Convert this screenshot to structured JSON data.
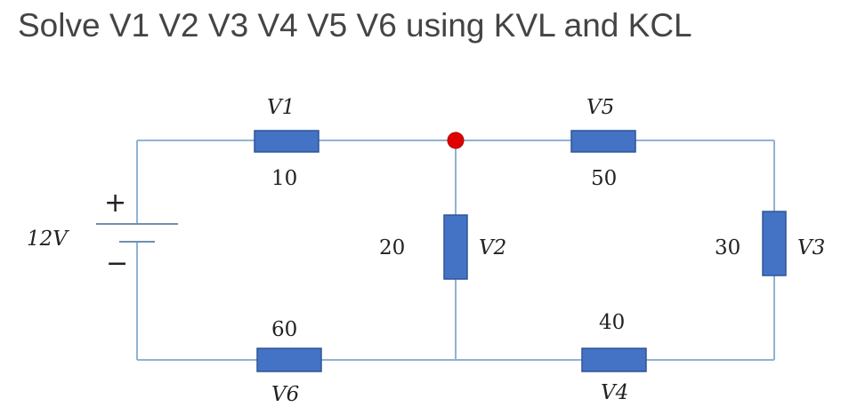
{
  "title": "Solve V1 V2 V3 V4 V5 V6 using KVL and KCL",
  "source": {
    "voltage": "12V",
    "positive": "+",
    "negative": "−"
  },
  "resistors": {
    "r1": {
      "value": "10",
      "voltage": "V1"
    },
    "r2": {
      "value": "20",
      "voltage": "V2"
    },
    "r3": {
      "value": "30",
      "voltage": "V3"
    },
    "r4": {
      "value": "40",
      "voltage": "V4"
    },
    "r5": {
      "value": "50",
      "voltage": "V5"
    },
    "r6": {
      "value": "60",
      "voltage": "V6"
    }
  },
  "colors": {
    "wire": "#8fb3d3",
    "resistor": "#4472c4",
    "node": "#e00000"
  }
}
